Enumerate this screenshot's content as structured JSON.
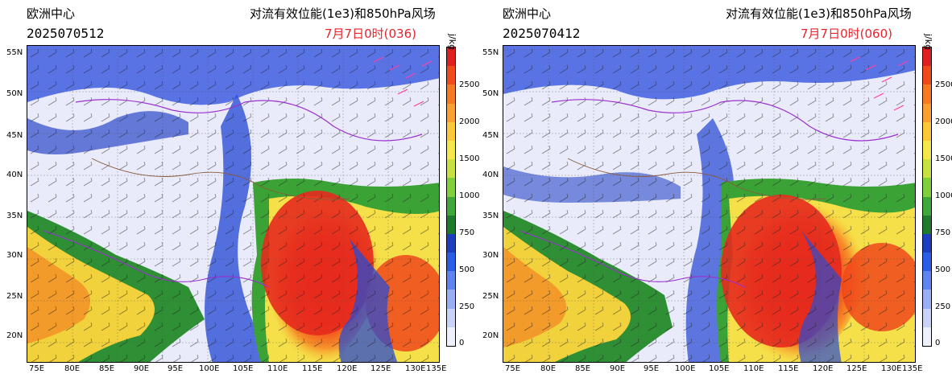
{
  "panels": [
    {
      "center": "欧洲中心",
      "title": "对流有效位能(1e3)和850hPa风场",
      "init_time": "2025070512",
      "valid_time": "7月7日0时(036)"
    },
    {
      "center": "欧洲中心",
      "title": "对流有效位能(1e3)和850hPa风场",
      "init_time": "2025070412",
      "valid_time": "7月7日0时(060)"
    }
  ],
  "axes": {
    "lon_labels": [
      "75E",
      "80E",
      "85E",
      "90E",
      "95E",
      "100E",
      "105E",
      "110E",
      "115E",
      "120E",
      "125E",
      "130E",
      "135E"
    ],
    "lat_labels": [
      "55N",
      "50N",
      "45N",
      "40N",
      "35N",
      "30N",
      "25N",
      "20N"
    ]
  },
  "colorbar": {
    "unit": "j/kg",
    "labels": [
      "2500",
      "2000",
      "1500",
      "1000",
      "750",
      "500",
      "250",
      "0"
    ],
    "colors": [
      "#e02020",
      "#f04a1a",
      "#f57a22",
      "#f9a030",
      "#fbc83a",
      "#f5e64a",
      "#c8e040",
      "#7fcf3a",
      "#3fa83a",
      "#1f7a2e",
      "#1d3fbe",
      "#2a5ee6",
      "#5f84f0",
      "#9aaef4",
      "#c9d2f8",
      "#eef0fb"
    ]
  },
  "colors": {
    "title_red": "#e8232b",
    "barb_pink": "#ff3fa0",
    "border_purple": "#9b30d0",
    "border_brown": "#8a5a3a"
  }
}
